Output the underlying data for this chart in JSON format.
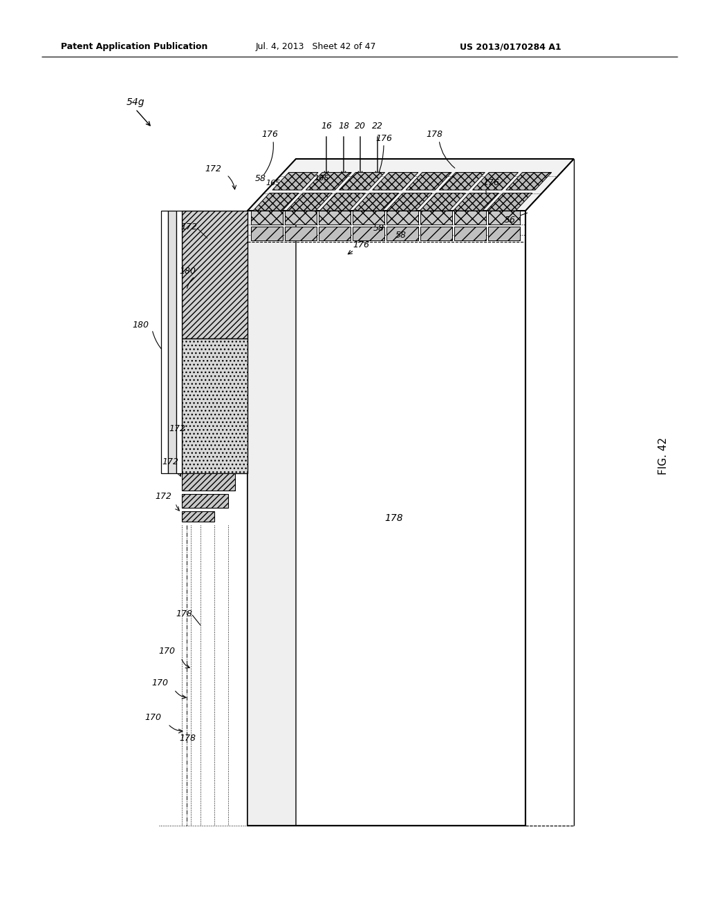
{
  "header_left": "Patent Application Publication",
  "header_mid": "Jul. 4, 2013   Sheet 42 of 47",
  "header_right": "US 2013/0170284 A1",
  "background": "#ffffff"
}
